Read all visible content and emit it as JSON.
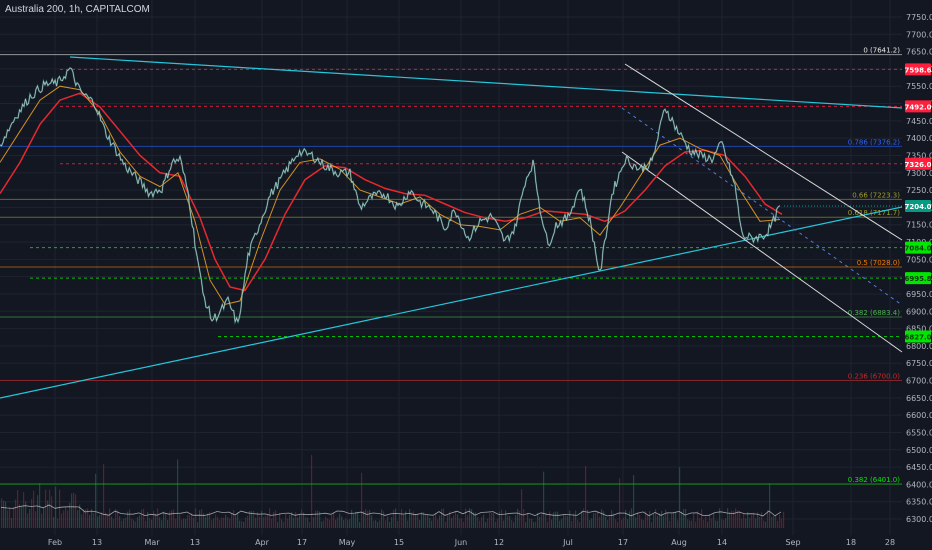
{
  "symbol_title": "Australia 200, 1h, CAPITALCOM",
  "colors": {
    "background": "#131722",
    "grid": "#1f2330",
    "price_line": "#c9cbd2",
    "ema_red": "#e8282e",
    "ema_orange": "#f5a623",
    "trendline": "#26c6da",
    "channel": "#d8d8d8",
    "fib_line": "#6b6b1f",
    "support_green": "#00e600",
    "resistance_red": "#ff1e3c",
    "current_price": "#089981"
  },
  "chart_data": {
    "type": "line",
    "title": "Australia 200, 1h, CAPITALCOM",
    "x_tick_labels": [
      "Feb",
      "13",
      "Mar",
      "13",
      "Apr",
      "17",
      "May",
      "15",
      "Jun",
      "12",
      "Jul",
      "17",
      "Aug",
      "14",
      "Sep",
      "18",
      "28"
    ],
    "ylim": [
      6260,
      7760
    ],
    "y_tick_labels": [
      "7750.0",
      "7700.0",
      "7650.0",
      "7600.0",
      "7550.0",
      "7500.0",
      "7450.0",
      "7400.0",
      "7350.0",
      "7300.0",
      "7250.0",
      "7200.0",
      "7150.0",
      "7100.0",
      "7050.0",
      "7000.0",
      "6950.0",
      "6900.0",
      "6850.0",
      "6800.0",
      "6750.0",
      "6700.0",
      "6650.0",
      "6600.0",
      "6550.0",
      "6500.0",
      "6450.0",
      "6400.0",
      "6350.0",
      "6300.0"
    ],
    "grid": false,
    "price_series": {
      "name": "Close",
      "points": [
        [
          0,
          7380
        ],
        [
          15,
          7460
        ],
        [
          30,
          7520
        ],
        [
          45,
          7555
        ],
        [
          58,
          7560
        ],
        [
          70,
          7600
        ],
        [
          80,
          7535
        ],
        [
          95,
          7500
        ],
        [
          105,
          7420
        ],
        [
          115,
          7370
        ],
        [
          125,
          7320
        ],
        [
          138,
          7280
        ],
        [
          150,
          7240
        ],
        [
          162,
          7255
        ],
        [
          172,
          7330
        ],
        [
          180,
          7340
        ],
        [
          188,
          7245
        ],
        [
          195,
          7100
        ],
        [
          203,
          6950
        ],
        [
          212,
          6875
        ],
        [
          218,
          6890
        ],
        [
          228,
          6930
        ],
        [
          238,
          6860
        ],
        [
          248,
          7060
        ],
        [
          258,
          7140
        ],
        [
          270,
          7235
        ],
        [
          285,
          7300
        ],
        [
          298,
          7360
        ],
        [
          312,
          7350
        ],
        [
          325,
          7320
        ],
        [
          338,
          7300
        ],
        [
          350,
          7300
        ],
        [
          360,
          7200
        ],
        [
          372,
          7230
        ],
        [
          385,
          7240
        ],
        [
          398,
          7200
        ],
        [
          410,
          7250
        ],
        [
          420,
          7215
        ],
        [
          432,
          7195
        ],
        [
          445,
          7140
        ],
        [
          455,
          7195
        ],
        [
          468,
          7110
        ],
        [
          480,
          7160
        ],
        [
          492,
          7175
        ],
        [
          505,
          7100
        ],
        [
          515,
          7140
        ],
        [
          525,
          7275
        ],
        [
          533,
          7330
        ],
        [
          540,
          7200
        ],
        [
          548,
          7090
        ],
        [
          556,
          7150
        ],
        [
          568,
          7170
        ],
        [
          580,
          7260
        ],
        [
          590,
          7160
        ],
        [
          600,
          7005
        ],
        [
          612,
          7240
        ],
        [
          625,
          7340
        ],
        [
          640,
          7310
        ],
        [
          652,
          7330
        ],
        [
          665,
          7490
        ],
        [
          678,
          7420
        ],
        [
          690,
          7365
        ],
        [
          700,
          7350
        ],
        [
          712,
          7340
        ],
        [
          722,
          7385
        ],
        [
          735,
          7260
        ],
        [
          742,
          7120
        ],
        [
          752,
          7110
        ],
        [
          765,
          7120
        ],
        [
          772,
          7150
        ],
        [
          780,
          7205
        ]
      ]
    },
    "ema_fast": {
      "name": "EMA fast",
      "points": [
        [
          0,
          7330
        ],
        [
          20,
          7420
        ],
        [
          40,
          7510
        ],
        [
          60,
          7550
        ],
        [
          80,
          7540
        ],
        [
          100,
          7470
        ],
        [
          120,
          7360
        ],
        [
          140,
          7290
        ],
        [
          160,
          7260
        ],
        [
          178,
          7300
        ],
        [
          195,
          7160
        ],
        [
          210,
          6990
        ],
        [
          225,
          6920
        ],
        [
          240,
          6930
        ],
        [
          260,
          7100
        ],
        [
          280,
          7250
        ],
        [
          300,
          7330
        ],
        [
          320,
          7340
        ],
        [
          340,
          7310
        ],
        [
          360,
          7250
        ],
        [
          380,
          7230
        ],
        [
          400,
          7210
        ],
        [
          420,
          7230
        ],
        [
          440,
          7180
        ],
        [
          460,
          7150
        ],
        [
          480,
          7145
        ],
        [
          500,
          7135
        ],
        [
          520,
          7180
        ],
        [
          540,
          7200
        ],
        [
          560,
          7160
        ],
        [
          580,
          7170
        ],
        [
          600,
          7120
        ],
        [
          620,
          7200
        ],
        [
          640,
          7290
        ],
        [
          660,
          7380
        ],
        [
          680,
          7400
        ],
        [
          700,
          7370
        ],
        [
          720,
          7350
        ],
        [
          740,
          7250
        ],
        [
          760,
          7160
        ],
        [
          780,
          7165
        ]
      ]
    },
    "ema_slow": {
      "name": "EMA slow",
      "points": [
        [
          0,
          7240
        ],
        [
          20,
          7330
        ],
        [
          40,
          7440
        ],
        [
          60,
          7510
        ],
        [
          80,
          7530
        ],
        [
          100,
          7490
        ],
        [
          120,
          7420
        ],
        [
          140,
          7350
        ],
        [
          160,
          7300
        ],
        [
          180,
          7290
        ],
        [
          200,
          7170
        ],
        [
          215,
          7050
        ],
        [
          230,
          6970
        ],
        [
          245,
          6960
        ],
        [
          265,
          7050
        ],
        [
          285,
          7180
        ],
        [
          305,
          7280
        ],
        [
          325,
          7320
        ],
        [
          345,
          7315
        ],
        [
          365,
          7280
        ],
        [
          385,
          7255
        ],
        [
          405,
          7240
        ],
        [
          425,
          7235
        ],
        [
          445,
          7210
        ],
        [
          465,
          7185
        ],
        [
          485,
          7170
        ],
        [
          505,
          7160
        ],
        [
          525,
          7170
        ],
        [
          545,
          7190
        ],
        [
          565,
          7185
        ],
        [
          585,
          7180
        ],
        [
          605,
          7160
        ],
        [
          625,
          7190
        ],
        [
          645,
          7250
        ],
        [
          665,
          7320
        ],
        [
          685,
          7360
        ],
        [
          705,
          7365
        ],
        [
          725,
          7350
        ],
        [
          745,
          7290
        ],
        [
          765,
          7210
        ],
        [
          782,
          7180
        ]
      ]
    },
    "levels": [
      {
        "price": 7641.2,
        "label": "0 (7641.2)",
        "color": "#e6e6e6",
        "style": "solid"
      },
      {
        "price": 7598.6,
        "label": "7598.6",
        "color": "#ff1e3c",
        "style": "dashed",
        "badge": true
      },
      {
        "price": 7492.0,
        "label": "7492.0",
        "color": "#ff1e3c",
        "style": "dashed",
        "badge": true
      },
      {
        "price": 7376.2,
        "label": "0.786 (7376.2)",
        "color": "#2962ff",
        "style": "solid"
      },
      {
        "price": 7326.0,
        "label": "7326.0",
        "color": "#ff1e3c",
        "style": "dashed",
        "badge": true
      },
      {
        "price": 7223.3,
        "label": "0.66 (7223.3)",
        "color": "#9e9e2a",
        "style": "solid"
      },
      {
        "price": 7171.7,
        "label": "0.618 (7171.7)",
        "color": "#9e9e2a",
        "style": "solid"
      },
      {
        "price": 7084.0,
        "label": "7084.0",
        "color": "#00e600",
        "style": "dashed",
        "badge": true
      },
      {
        "price": 7028.0,
        "label": "0.5 (7028.0)",
        "color": "#f57c00",
        "style": "solid"
      },
      {
        "price": 6995.8,
        "label": "6995.8",
        "color": "#00e600",
        "style": "dashed",
        "badge": true
      },
      {
        "price": 6883.4,
        "label": "0.382 (6883.4)",
        "color": "#4caf50",
        "style": "solid"
      },
      {
        "price": 6827.0,
        "label": "6827.0",
        "color": "#00e600",
        "style": "dashed",
        "badge": true
      },
      {
        "price": 6700.0,
        "label": "0.236 (6700.0)",
        "color": "#c62828",
        "style": "solid"
      },
      {
        "price": 6401.0,
        "label": "0.382 (6401.0)",
        "color": "#00e600",
        "style": "solid"
      }
    ],
    "current_price": {
      "value": 7204.0,
      "label": "7204.0"
    }
  }
}
